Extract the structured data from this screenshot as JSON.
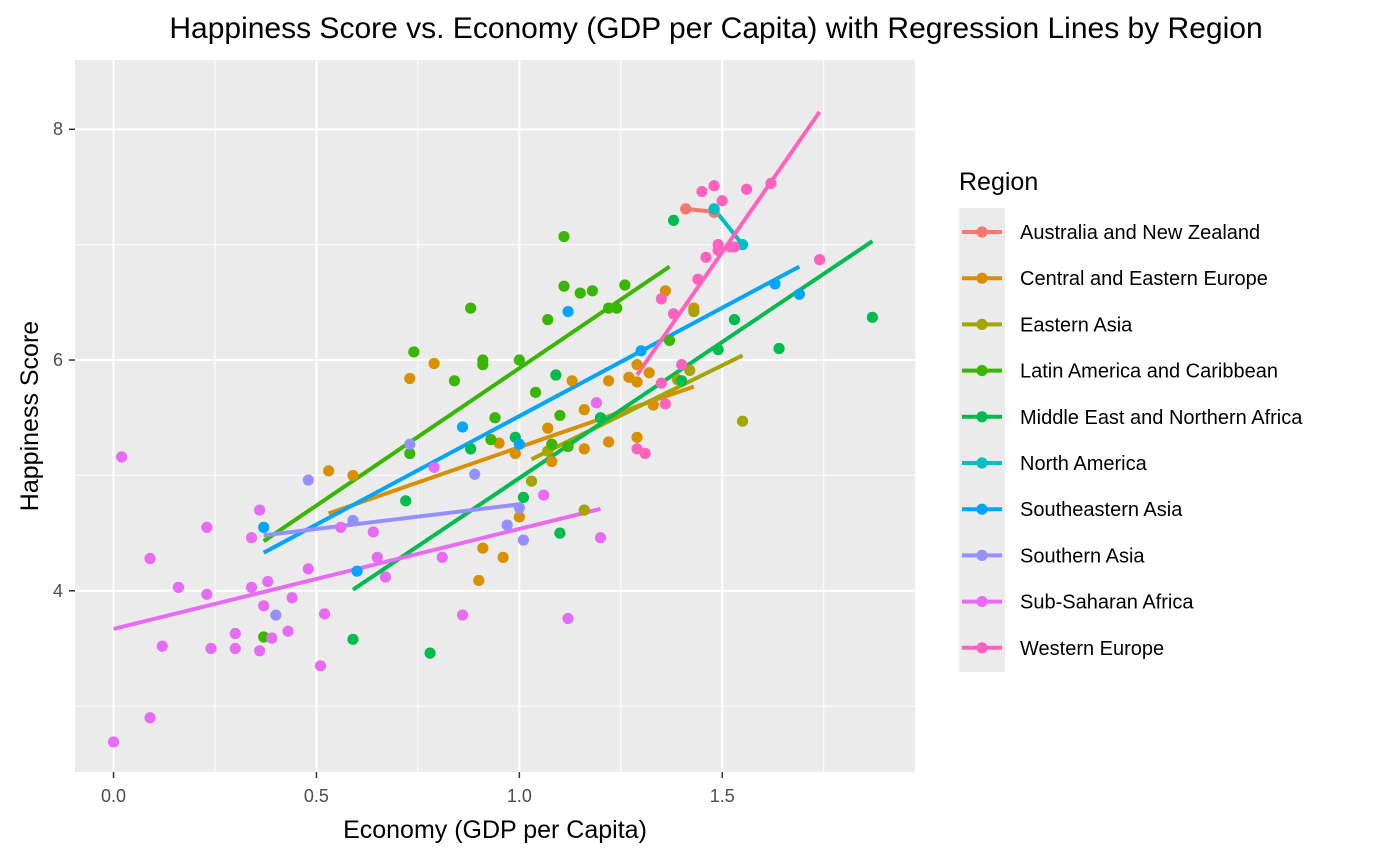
{
  "chart_data": {
    "type": "scatter",
    "title": "Happiness Score vs. Economy (GDP per Capita) with Regression Lines by Region",
    "xlabel": "Economy (GDP per Capita)",
    "ylabel": "Happiness Score",
    "xlim": [
      -0.095,
      1.975
    ],
    "ylim": [
      2.43,
      8.6
    ],
    "x_ticks": [
      0.0,
      0.5,
      1.0,
      1.5
    ],
    "x_tick_labels": [
      "0.0",
      "0.5",
      "1.0",
      "1.5"
    ],
    "y_ticks": [
      4,
      6,
      8
    ],
    "y_tick_labels": [
      "4",
      "6",
      "8"
    ],
    "grid": true,
    "legend": {
      "title": "Region",
      "position": "right"
    },
    "series": [
      {
        "name": "Australia and New Zealand",
        "color": "#F8766D",
        "points": [
          [
            1.41,
            7.31
          ],
          [
            1.48,
            7.28
          ]
        ],
        "line": [
          [
            1.41,
            7.31
          ],
          [
            1.49,
            7.28
          ]
        ]
      },
      {
        "name": "Central and Eastern Europe",
        "color": "#D89000",
        "points": [
          [
            0.53,
            5.04
          ],
          [
            0.59,
            5.0
          ],
          [
            0.73,
            5.84
          ],
          [
            0.79,
            5.97
          ],
          [
            0.9,
            4.09
          ],
          [
            0.91,
            4.37
          ],
          [
            0.95,
            5.28
          ],
          [
            0.96,
            4.29
          ],
          [
            0.99,
            5.19
          ],
          [
            1.0,
            4.64
          ],
          [
            1.07,
            5.41
          ],
          [
            1.08,
            5.12
          ],
          [
            1.13,
            5.82
          ],
          [
            1.16,
            5.23
          ],
          [
            1.16,
            5.57
          ],
          [
            1.16,
            4.7
          ],
          [
            1.22,
            5.82
          ],
          [
            1.22,
            5.29
          ],
          [
            1.27,
            5.85
          ],
          [
            1.29,
            5.33
          ],
          [
            1.29,
            5.96
          ],
          [
            1.32,
            5.89
          ],
          [
            1.33,
            5.61
          ],
          [
            1.36,
            6.6
          ],
          [
            1.43,
            6.45
          ],
          [
            1.29,
            5.81
          ]
        ],
        "line": [
          [
            0.53,
            4.67
          ],
          [
            1.43,
            5.77
          ]
        ]
      },
      {
        "name": "Eastern Asia",
        "color": "#A3A500",
        "points": [
          [
            1.03,
            4.95
          ],
          [
            1.07,
            5.21
          ],
          [
            1.16,
            4.7
          ],
          [
            1.39,
            5.83
          ],
          [
            1.43,
            6.42
          ],
          [
            1.55,
            5.47
          ],
          [
            1.42,
            5.91
          ]
        ],
        "line": [
          [
            1.03,
            5.14
          ],
          [
            1.55,
            6.04
          ]
        ]
      },
      {
        "name": "Latin America and Caribbean",
        "color": "#39B600",
        "points": [
          [
            0.37,
            3.6
          ],
          [
            0.73,
            5.19
          ],
          [
            0.74,
            6.07
          ],
          [
            0.84,
            5.82
          ],
          [
            0.88,
            6.45
          ],
          [
            0.91,
            5.96
          ],
          [
            0.91,
            6.0
          ],
          [
            0.93,
            5.31
          ],
          [
            0.94,
            5.5
          ],
          [
            1.0,
            6.0
          ],
          [
            1.04,
            5.72
          ],
          [
            1.07,
            6.35
          ],
          [
            1.08,
            5.27
          ],
          [
            1.1,
            5.52
          ],
          [
            1.11,
            6.64
          ],
          [
            1.11,
            7.07
          ],
          [
            1.12,
            5.25
          ],
          [
            1.15,
            6.58
          ],
          [
            1.18,
            6.6
          ],
          [
            1.22,
            6.45
          ],
          [
            1.24,
            6.45
          ],
          [
            1.26,
            6.65
          ],
          [
            1.37,
            6.17
          ]
        ],
        "line": [
          [
            0.37,
            4.43
          ],
          [
            1.37,
            6.81
          ]
        ]
      },
      {
        "name": "Middle East and Northern Africa",
        "color": "#00BB4E",
        "points": [
          [
            0.59,
            3.58
          ],
          [
            0.72,
            4.78
          ],
          [
            0.78,
            3.46
          ],
          [
            0.88,
            5.23
          ],
          [
            0.99,
            5.33
          ],
          [
            1.01,
            4.81
          ],
          [
            1.09,
            5.87
          ],
          [
            1.1,
            4.5
          ],
          [
            1.2,
            5.5
          ],
          [
            1.38,
            7.21
          ],
          [
            1.4,
            5.82
          ],
          [
            1.49,
            6.09
          ],
          [
            1.53,
            6.35
          ],
          [
            1.64,
            6.1
          ],
          [
            1.87,
            6.37
          ]
        ],
        "line": [
          [
            0.59,
            4.01
          ],
          [
            1.87,
            7.03
          ]
        ]
      },
      {
        "name": "North America",
        "color": "#00BFC4",
        "points": [
          [
            1.48,
            7.31
          ],
          [
            1.55,
            7.0
          ]
        ],
        "line": [
          [
            1.48,
            7.31
          ],
          [
            1.55,
            7.0
          ]
        ]
      },
      {
        "name": "Southeastern Asia",
        "color": "#00A5FF",
        "points": [
          [
            0.37,
            4.55
          ],
          [
            0.6,
            4.17
          ],
          [
            0.86,
            5.42
          ],
          [
            1.0,
            5.27
          ],
          [
            1.12,
            6.42
          ],
          [
            1.3,
            6.08
          ],
          [
            1.63,
            6.66
          ],
          [
            1.69,
            6.57
          ]
        ],
        "line": [
          [
            0.37,
            4.33
          ],
          [
            1.69,
            6.81
          ]
        ]
      },
      {
        "name": "Southern Asia",
        "color": "#9590FF",
        "points": [
          [
            0.4,
            3.79
          ],
          [
            0.48,
            4.96
          ],
          [
            0.59,
            4.61
          ],
          [
            0.73,
            5.27
          ],
          [
            0.89,
            5.01
          ],
          [
            0.97,
            4.57
          ],
          [
            1.01,
            4.44
          ],
          [
            1.0,
            4.72
          ]
        ],
        "line": [
          [
            0.37,
            4.48
          ],
          [
            1.0,
            4.75
          ]
        ]
      },
      {
        "name": "Sub-Saharan Africa",
        "color": "#E76BF3",
        "points": [
          [
            0.0,
            2.69
          ],
          [
            0.02,
            5.16
          ],
          [
            0.09,
            4.28
          ],
          [
            0.09,
            2.9
          ],
          [
            0.12,
            3.52
          ],
          [
            0.16,
            4.03
          ],
          [
            0.23,
            4.55
          ],
          [
            0.23,
            3.97
          ],
          [
            0.24,
            3.5
          ],
          [
            0.3,
            3.5
          ],
          [
            0.3,
            3.63
          ],
          [
            0.34,
            4.03
          ],
          [
            0.34,
            4.46
          ],
          [
            0.36,
            4.7
          ],
          [
            0.36,
            3.48
          ],
          [
            0.37,
            3.87
          ],
          [
            0.38,
            4.08
          ],
          [
            0.39,
            3.59
          ],
          [
            0.43,
            3.65
          ],
          [
            0.44,
            3.94
          ],
          [
            0.48,
            4.19
          ],
          [
            0.51,
            3.35
          ],
          [
            0.52,
            3.8
          ],
          [
            0.56,
            4.55
          ],
          [
            0.64,
            4.51
          ],
          [
            0.65,
            4.29
          ],
          [
            0.67,
            4.12
          ],
          [
            0.79,
            5.07
          ],
          [
            0.81,
            4.29
          ],
          [
            0.86,
            3.79
          ],
          [
            1.06,
            4.83
          ],
          [
            1.12,
            3.76
          ],
          [
            1.19,
            5.63
          ],
          [
            1.2,
            4.46
          ]
        ],
        "line": [
          [
            0.0,
            3.67
          ],
          [
            1.2,
            4.71
          ]
        ]
      },
      {
        "name": "Western Europe",
        "color": "#FF62BC",
        "points": [
          [
            1.29,
            5.23
          ],
          [
            1.31,
            5.19
          ],
          [
            1.35,
            5.8
          ],
          [
            1.35,
            6.53
          ],
          [
            1.36,
            5.62
          ],
          [
            1.38,
            6.4
          ],
          [
            1.4,
            5.96
          ],
          [
            1.44,
            6.7
          ],
          [
            1.45,
            7.46
          ],
          [
            1.46,
            6.89
          ],
          [
            1.48,
            7.51
          ],
          [
            1.49,
            7.0
          ],
          [
            1.49,
            6.95
          ],
          [
            1.5,
            7.38
          ],
          [
            1.52,
            6.98
          ],
          [
            1.53,
            6.98
          ],
          [
            1.56,
            7.48
          ],
          [
            1.62,
            7.53
          ],
          [
            1.74,
            6.87
          ]
        ],
        "line": [
          [
            1.29,
            5.87
          ],
          [
            1.74,
            8.15
          ]
        ]
      }
    ]
  }
}
